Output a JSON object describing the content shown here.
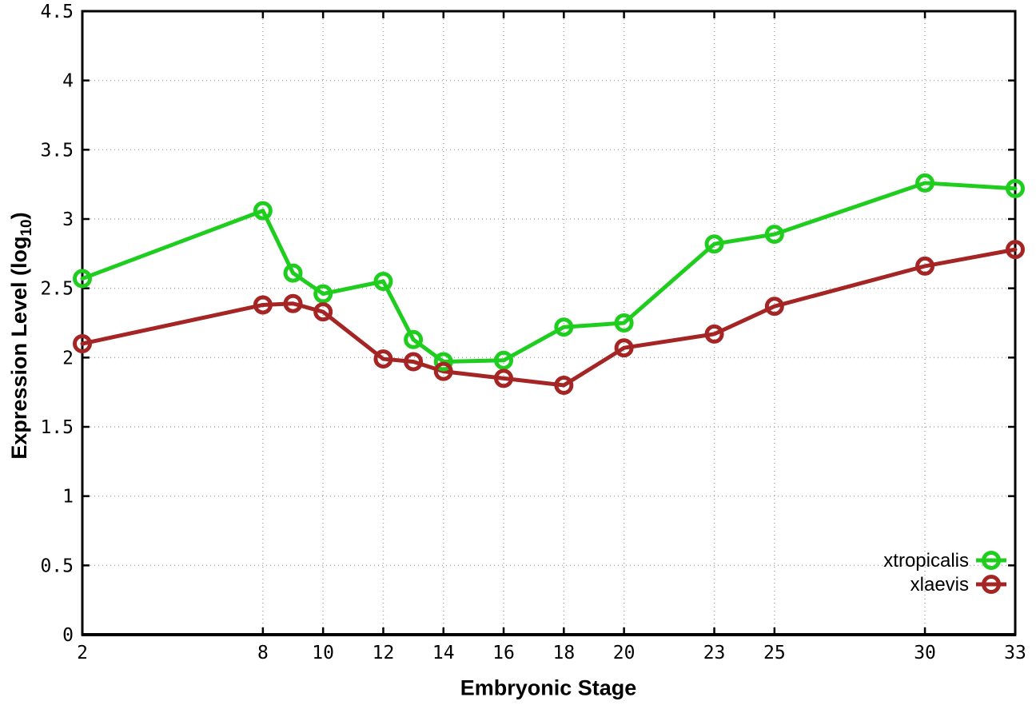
{
  "chart_data": {
    "type": "line",
    "title": "",
    "xlabel": "Embryonic Stage",
    "ylabel": {
      "main": "Expression Level (log",
      "sub": "10",
      "close": ")"
    },
    "x": [
      2,
      8,
      9,
      10,
      12,
      13,
      14,
      16,
      18,
      20,
      23,
      25,
      30,
      33
    ],
    "series": [
      {
        "name": "xtropicalis",
        "color": "#1ecd1e",
        "values": [
          2.57,
          3.06,
          2.61,
          2.46,
          2.55,
          2.13,
          1.97,
          1.98,
          2.22,
          2.25,
          2.82,
          2.89,
          3.26,
          3.22
        ]
      },
      {
        "name": "xlaevis",
        "color": "#a52525",
        "values": [
          2.1,
          2.38,
          2.39,
          2.33,
          1.99,
          1.97,
          1.9,
          1.85,
          1.8,
          2.07,
          2.17,
          2.37,
          2.66,
          2.78
        ]
      }
    ],
    "xticks": [
      2,
      8,
      10,
      12,
      14,
      16,
      18,
      20,
      23,
      25,
      30,
      33
    ],
    "yticks": [
      0,
      0.5,
      1,
      1.5,
      2,
      2.5,
      3,
      3.5,
      4,
      4.5
    ],
    "ytick_labels": [
      "0",
      "0.5",
      "1",
      "1.5",
      "2",
      "2.5",
      "3",
      "3.5",
      "4",
      "4.5"
    ],
    "xlim": [
      2,
      33
    ],
    "ylim": [
      0,
      4.5
    ],
    "grid": true,
    "legend_position": "inside bottom-right",
    "marker": "open-circle"
  },
  "colors": {
    "background": "#ffffff",
    "border": "#000000",
    "grid": "#a8a8a8",
    "tick_text": "#000000"
  }
}
